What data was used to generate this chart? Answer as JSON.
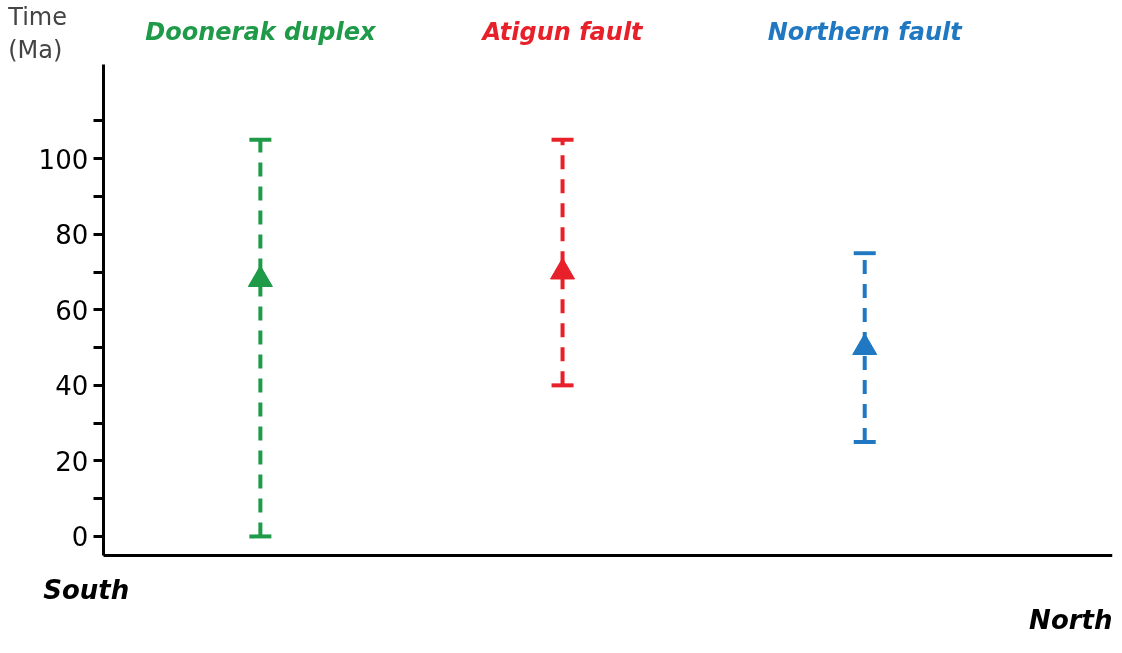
{
  "chart_data": {
    "type": "scatter",
    "categories": [
      null,
      null,
      null
    ],
    "ylabel": "Time (Ma)",
    "ylim": [
      -5,
      125
    ],
    "yticks": [
      0,
      {
        "value": 10,
        "label": null
      },
      20,
      {
        "value": 30,
        "label": null
      },
      40,
      {
        "value": 50,
        "label": null
      },
      60,
      {
        "value": 70,
        "label": null
      },
      80,
      {
        "value": 90,
        "label": null
      },
      100,
      {
        "value": 110,
        "label": null
      }
    ],
    "series": [
      {
        "name": "Doonerak duplex",
        "color": "#1e9a48",
        "values": [
          68,
          null,
          null
        ],
        "errors": [
          [
            0,
            105
          ],
          null,
          null
        ]
      },
      {
        "name": "Atigun fault",
        "color": "#e8202a",
        "values": [
          null,
          70,
          null
        ],
        "errors": [
          null,
          [
            40,
            105
          ],
          null
        ]
      },
      {
        "name": "Northern fault",
        "color": "#1f78c1",
        "values": [
          null,
          null,
          50
        ],
        "errors": [
          null,
          null,
          [
            25,
            75
          ]
        ]
      }
    ],
    "marker": "triangle",
    "line_style": "dashed",
    "grid": false,
    "tick_labels": "y",
    "annotations": [
      "South",
      "North"
    ]
  }
}
